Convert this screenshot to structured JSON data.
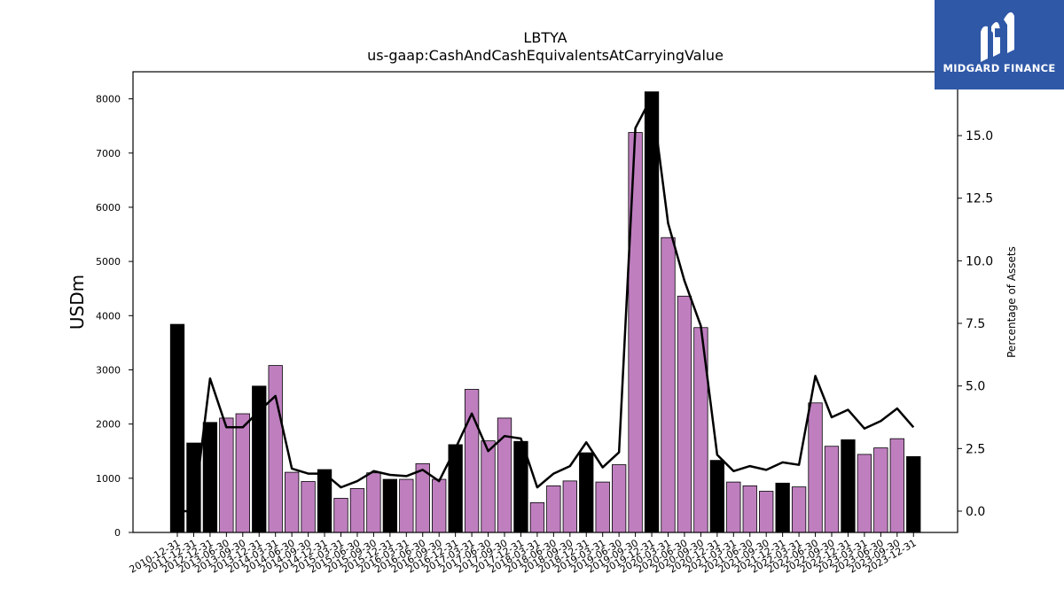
{
  "logo": {
    "text": "MIDGARD FINANCE",
    "name": "midgard-finance-logo",
    "color": "#2f58a7"
  },
  "chart_data": {
    "type": "bar",
    "title": "LBTYA",
    "subtitle": "us-gaap:CashAndCashEquivalentsAtCarryingValue",
    "ylabel": "USDm",
    "y2label": "Percentage of Assets",
    "ylim": [
      0,
      8500
    ],
    "y2lim": [
      -0.85,
      17.55
    ],
    "yticks": [
      0,
      1000,
      2000,
      3000,
      4000,
      5000,
      6000,
      7000,
      8000
    ],
    "y2ticks": [
      0.0,
      2.5,
      5.0,
      7.5,
      10.0,
      12.5,
      15.0
    ],
    "colors": {
      "annual_bar": "#000000",
      "quarter_bar": "#bf7fbf",
      "line": "#000000"
    },
    "grid": false,
    "categories": [
      "2010-12-31",
      "2011-12-31",
      "2012-12-31",
      "2013-06-30",
      "2013-09-30",
      "2013-12-31",
      "2014-03-31",
      "2014-06-30",
      "2014-09-30",
      "2014-12-31",
      "2015-03-31",
      "2015-06-30",
      "2015-09-30",
      "2015-12-31",
      "2016-03-31",
      "2016-06-30",
      "2016-09-30",
      "2016-12-31",
      "2017-03-31",
      "2017-06-30",
      "2017-09-30",
      "2017-12-31",
      "2018-03-31",
      "2018-06-30",
      "2018-09-30",
      "2018-12-31",
      "2019-03-31",
      "2019-06-30",
      "2019-09-30",
      "2019-12-31",
      "2020-03-31",
      "2020-06-30",
      "2020-09-30",
      "2020-12-31",
      "2021-03-31",
      "2021-06-30",
      "2021-09-30",
      "2021-12-31",
      "2022-03-31",
      "2022-06-30",
      "2022-09-30",
      "2022-12-31",
      "2023-03-31",
      "2023-06-30",
      "2023-09-30",
      "2023-12-31"
    ],
    "series": [
      {
        "kind": "bar",
        "values": [
          3840,
          1650,
          2030,
          2110,
          2190,
          2700,
          3080,
          1110,
          940,
          1160,
          630,
          810,
          1100,
          980,
          980,
          1270,
          980,
          1620,
          2640,
          1690,
          2110,
          1680,
          550,
          860,
          950,
          1470,
          930,
          1250,
          7380,
          8130,
          5440,
          4360,
          3780,
          1330,
          930,
          860,
          760,
          910,
          840,
          2390,
          1590,
          1710,
          1440,
          1560,
          1730,
          1400
        ],
        "annual": [
          true,
          true,
          true,
          false,
          false,
          true,
          false,
          false,
          false,
          true,
          false,
          false,
          false,
          true,
          false,
          false,
          false,
          true,
          false,
          false,
          false,
          true,
          false,
          false,
          false,
          true,
          false,
          false,
          false,
          true,
          false,
          false,
          false,
          true,
          false,
          false,
          false,
          true,
          false,
          false,
          false,
          true,
          false,
          false,
          false,
          true
        ]
      },
      {
        "kind": "line",
        "axis": "right",
        "values": [
          0.0,
          0.0,
          5.3,
          3.35,
          3.35,
          4.0,
          4.6,
          1.7,
          1.5,
          1.5,
          0.95,
          1.2,
          1.6,
          1.45,
          1.4,
          1.65,
          1.2,
          2.5,
          3.9,
          2.4,
          3.0,
          2.9,
          0.95,
          1.5,
          1.8,
          2.75,
          1.75,
          2.35,
          15.3,
          16.55,
          11.5,
          9.2,
          7.4,
          2.25,
          1.6,
          1.8,
          1.65,
          1.95,
          1.85,
          5.4,
          3.75,
          4.05,
          3.3,
          3.6,
          4.1,
          3.35
        ]
      }
    ]
  }
}
